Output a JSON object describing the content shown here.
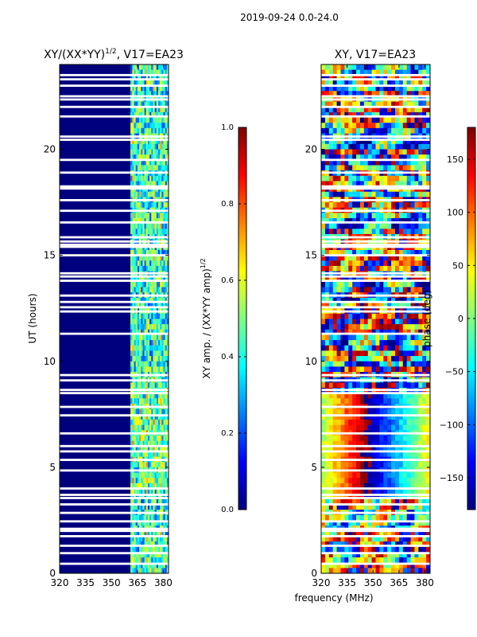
{
  "figure": {
    "suptitle": "2019-09-24 0.0-24.0",
    "shared_xlabel": "frequency (MHz)"
  },
  "colors": {
    "jet": [
      "#00007f",
      "#0000ff",
      "#007fff",
      "#00ffff",
      "#7fff7f",
      "#ffff00",
      "#ff7f00",
      "#ff0000",
      "#7f0000"
    ],
    "background_dominant": "#00007f",
    "gap": "#ffffff"
  },
  "chart_data": [
    {
      "type": "heatmap",
      "name": "amplitude",
      "title_prefix": "XY/(XX*YY)",
      "title_superscript": "1/2",
      "title_suffix": ", V17=EA23",
      "xlabel": "",
      "ylabel": "UT (hours)",
      "xlim": [
        320,
        383
      ],
      "ylim": [
        0,
        24
      ],
      "xticks": [
        "320",
        "335",
        "350",
        "365",
        "380"
      ],
      "yticks": [
        "0",
        "5",
        "10",
        "15",
        "20"
      ],
      "colorbar": {
        "label_prefix": "XY amp. / (XX*YY amp)",
        "label_superscript": "1/2",
        "range": [
          0.0,
          1.0
        ],
        "ticks": [
          "0.0",
          "0.2",
          "0.4",
          "0.6",
          "0.8",
          "1.0"
        ]
      },
      "description_values": {
        "low_band_MHz": [
          320,
          360
        ],
        "low_band_value": 0.05,
        "high_band_MHz": [
          361,
          383
        ],
        "high_band_value_range": [
          0.2,
          0.7
        ]
      }
    },
    {
      "type": "heatmap",
      "name": "phase",
      "title": "XY, V17=EA23",
      "xlabel": "",
      "ylabel": "",
      "xlim": [
        320,
        383
      ],
      "ylim": [
        0,
        24
      ],
      "xticks": [
        "320",
        "335",
        "350",
        "365",
        "380"
      ],
      "yticks": [
        "0",
        "5",
        "10",
        "15",
        "20"
      ],
      "colorbar": {
        "label": "phase (deg)",
        "range": [
          -180,
          180
        ],
        "ticks": [
          "-150",
          "-100",
          "-50",
          "0",
          "50",
          "100",
          "150"
        ]
      }
    }
  ],
  "gaps_hours": [
    0.45,
    0.95,
    1.3,
    1.75,
    2.0,
    2.1,
    2.45,
    2.85,
    3.25,
    3.55,
    3.7,
    4.0,
    4.85,
    5.35,
    5.75,
    6.0,
    6.6,
    7.45,
    7.85,
    8.5,
    8.65,
    9.1,
    9.35,
    11.3,
    12.35,
    12.55,
    12.8,
    13.1,
    13.8,
    14.0,
    14.15,
    15.0,
    15.4,
    15.5,
    15.65,
    15.85,
    16.55,
    17.1,
    17.6,
    18.15,
    18.25,
    18.9,
    19.5,
    20.45,
    20.6,
    21.55,
    22.0,
    22.35,
    22.5,
    23.0,
    23.3,
    23.5
  ]
}
